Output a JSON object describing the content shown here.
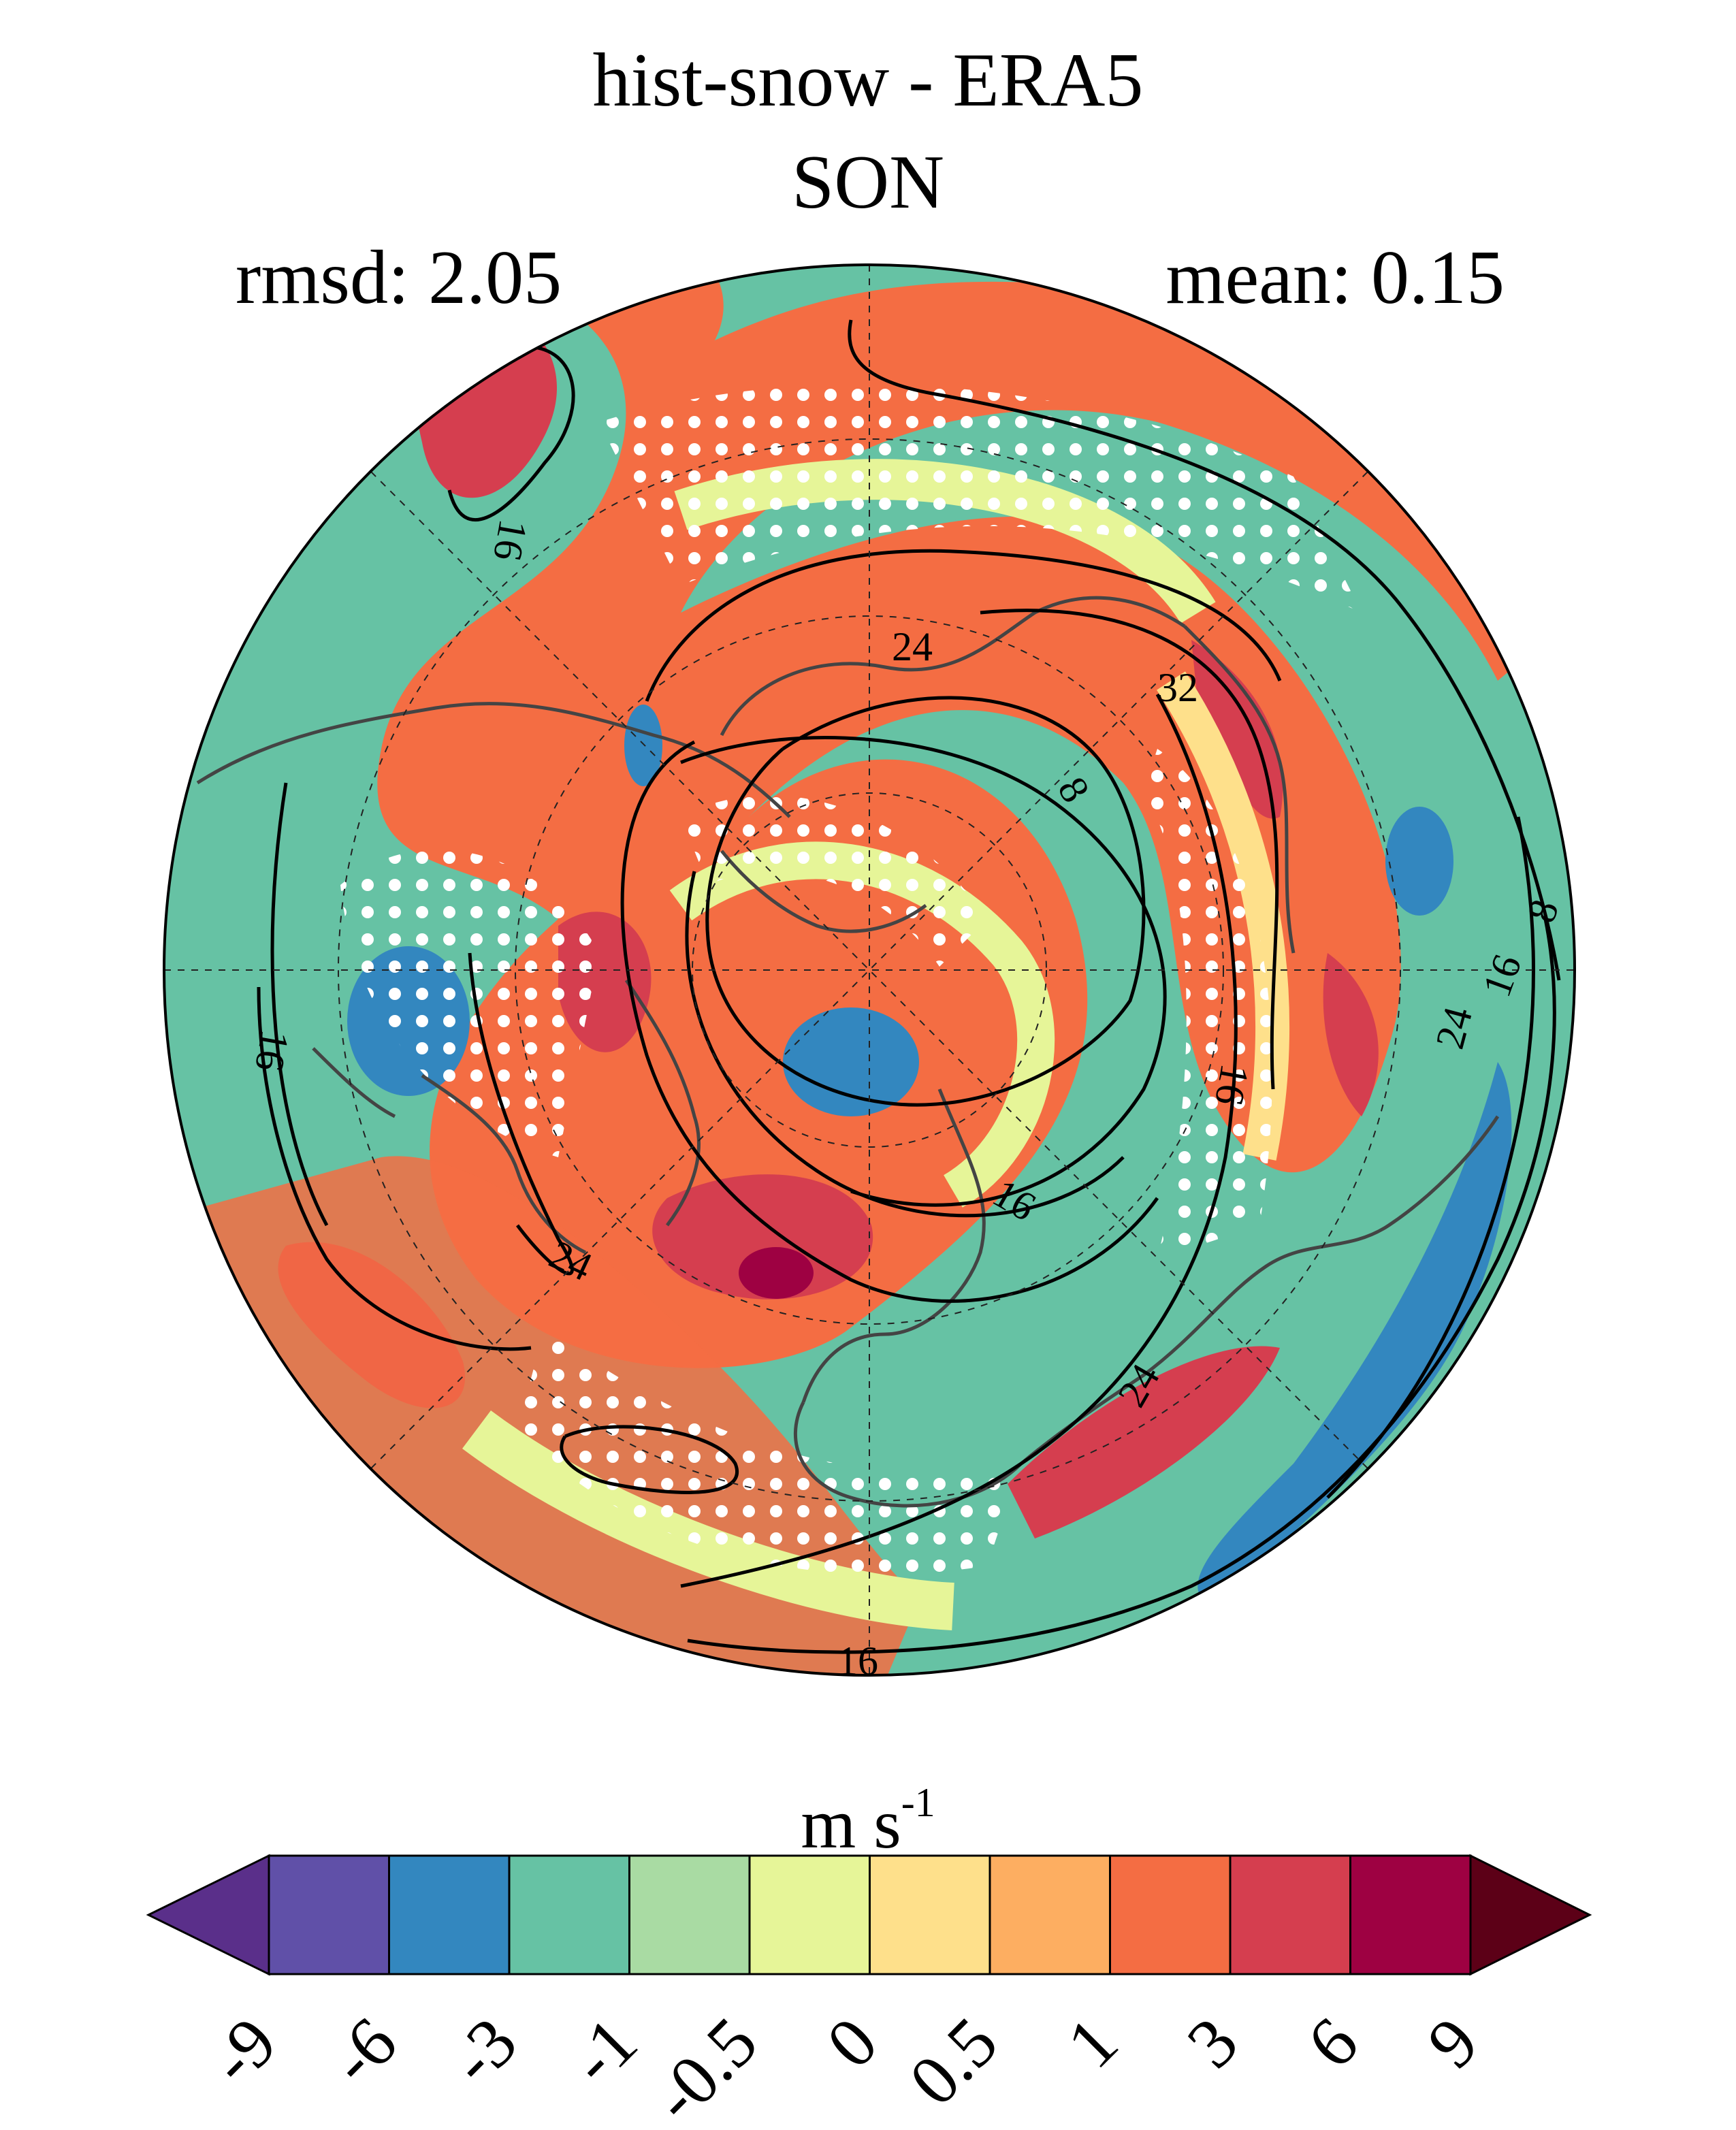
{
  "title": "hist-snow - ERA5",
  "season": "SON",
  "stats": {
    "rmsd": "rmsd: 2.05",
    "mean": "mean: 0.15"
  },
  "units": {
    "base": "m s",
    "exponent": "-1"
  },
  "colorbar": {
    "levels": [
      "-9",
      "-6",
      "-3",
      "-1",
      "-0.5",
      "0",
      "0.5",
      "1",
      "3",
      "6",
      "9"
    ],
    "colors": [
      "#5a2f8a",
      "#6050a8",
      "#3387bf",
      "#66c2a4",
      "#a9dba3",
      "#e6f598",
      "#fee08b",
      "#fdae61",
      "#f46d43",
      "#d53e4f",
      "#9e0142",
      "#5c0017"
    ]
  },
  "contour_labels": [
    "16",
    "24",
    "32",
    "8",
    "8",
    "16",
    "24",
    "16",
    "16",
    "24",
    "16",
    "24",
    "16"
  ],
  "colors": {
    "ocean_base": "#66c2a4",
    "coast": "#444444",
    "contour": "#000000",
    "stipple": "#ffffff"
  }
}
